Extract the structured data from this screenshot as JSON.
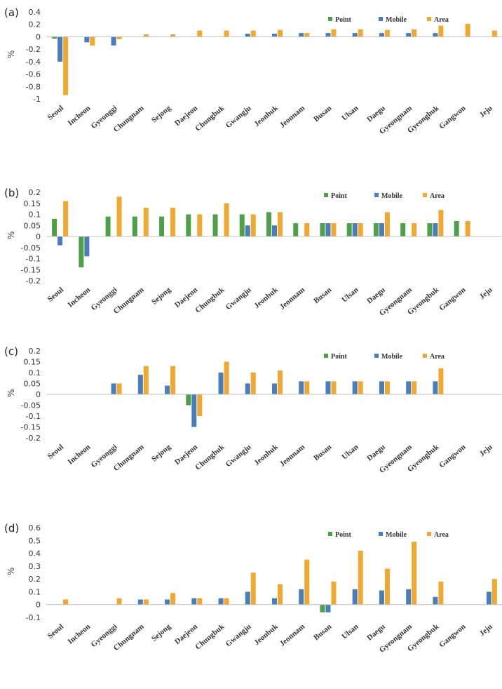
{
  "legend_colors": {
    "Point": "#4ea047",
    "Mobile": "#4a7ebb",
    "Area": "#f0a830"
  },
  "chart_data": [
    {
      "type": "bar",
      "panel": "(a)",
      "ylabel": "%",
      "ylim": [
        -1,
        0.4
      ],
      "yticks": [
        0.4,
        0.2,
        0,
        -0.2,
        -0.4,
        -0.6,
        -0.8,
        -1
      ],
      "categories": [
        "Seoul",
        "Incheon",
        "Gyeonggi",
        "Chungnam",
        "Sejong",
        "Daejeon",
        "Chungbuk",
        "Gwangju",
        "Jeonbuk",
        "Jeonnam",
        "Busan",
        "Ulsan",
        "Daegu",
        "Gyeongnam",
        "Gyeongbuk",
        "Gangwon",
        "Jeju"
      ],
      "series": [
        {
          "name": "Point",
          "values": [
            -0.03,
            0,
            0,
            0,
            0,
            0,
            0,
            0,
            0,
            0,
            0,
            0,
            0,
            0,
            0,
            0,
            0
          ]
        },
        {
          "name": "Mobile",
          "values": [
            -0.4,
            -0.09,
            -0.14,
            0,
            0,
            0,
            0,
            0.05,
            0.05,
            0.06,
            0.06,
            0.06,
            0.06,
            0.06,
            0.06,
            0,
            0
          ]
        },
        {
          "name": "Area",
          "values": [
            -0.94,
            -0.14,
            -0.04,
            0.04,
            0.04,
            0.1,
            0.1,
            0.1,
            0.11,
            0.06,
            0.12,
            0.12,
            0.11,
            0.12,
            0.18,
            0.21,
            0.1
          ]
        }
      ]
    },
    {
      "type": "bar",
      "panel": "(b)",
      "ylabel": "%",
      "ylim": [
        -0.2,
        0.2
      ],
      "yticks": [
        0.2,
        0.15,
        0.1,
        0.05,
        0,
        -0.05,
        -0.1,
        -0.15,
        -0.2
      ],
      "categories": [
        "Seoul",
        "Incheon",
        "Gyeonggi",
        "Chungnam",
        "Sejong",
        "Daejeon",
        "Chungbuk",
        "Gwangju",
        "Jeonbuk",
        "Jeonnam",
        "Busan",
        "Ulsan",
        "Daegu",
        "Gyeongnam",
        "Gyeongbuk",
        "Gangwon",
        "Jeju"
      ],
      "series": [
        {
          "name": "Point",
          "values": [
            0.08,
            -0.14,
            0.09,
            0.09,
            0.09,
            0.1,
            0.1,
            0.1,
            0.11,
            0.06,
            0.06,
            0.06,
            0.06,
            0.06,
            0.06,
            0.07,
            0
          ]
        },
        {
          "name": "Mobile",
          "values": [
            -0.04,
            -0.09,
            0,
            0,
            0,
            0,
            0,
            0.05,
            0.05,
            0,
            0.06,
            0.06,
            0.06,
            0,
            0.06,
            0,
            0
          ]
        },
        {
          "name": "Area",
          "values": [
            0.16,
            0,
            0.18,
            0.13,
            0.13,
            0.1,
            0.15,
            0.1,
            0.11,
            0.06,
            0.06,
            0.06,
            0.11,
            0.06,
            0.12,
            0.07,
            0
          ]
        }
      ]
    },
    {
      "type": "bar",
      "panel": "(c)",
      "ylabel": "%",
      "ylim": [
        -0.2,
        0.2
      ],
      "yticks": [
        0.2,
        0.15,
        0.1,
        0.05,
        0,
        -0.05,
        -0.1,
        -0.15,
        -0.2
      ],
      "categories": [
        "Seoul",
        "Incheon",
        "Gyeonggi",
        "Chungnam",
        "Sejong",
        "Daejeon",
        "Chungbuk",
        "Gwangju",
        "Jeonbuk",
        "Jeonnam",
        "Busan",
        "Ulsan",
        "Daegu",
        "Gyeongnam",
        "Gyeongbuk",
        "Gangwon",
        "Jeju"
      ],
      "series": [
        {
          "name": "Point",
          "values": [
            0,
            0,
            0,
            0,
            0,
            -0.05,
            0,
            0,
            0,
            0,
            0,
            0,
            0,
            0,
            0,
            0,
            0
          ]
        },
        {
          "name": "Mobile",
          "values": [
            0,
            0,
            0.05,
            0.09,
            0.04,
            -0.15,
            0.1,
            0.05,
            0.05,
            0.06,
            0.06,
            0.06,
            0.06,
            0.06,
            0.06,
            0,
            0
          ]
        },
        {
          "name": "Area",
          "values": [
            0,
            0,
            0.05,
            0.13,
            0.13,
            -0.1,
            0.15,
            0.1,
            0.11,
            0.06,
            0.06,
            0.06,
            0.06,
            0.06,
            0.12,
            0,
            0
          ]
        }
      ]
    },
    {
      "type": "bar",
      "panel": "(d)",
      "ylabel": "%",
      "ylim": [
        -0.1,
        0.6
      ],
      "yticks": [
        0.6,
        0.5,
        0.4,
        0.3,
        0.2,
        0.1,
        0,
        -0.1
      ],
      "categories": [
        "Seoul",
        "Incheon",
        "Gyeonggi",
        "Chungnam",
        "Sejong",
        "Daejeon",
        "Chungbuk",
        "Gwangju",
        "Jeonbuk",
        "Jeonnam",
        "Busan",
        "Ulsan",
        "Daegu",
        "Gyeongnam",
        "Gyeongbuk",
        "Gangwon",
        "Jeju"
      ],
      "series": [
        {
          "name": "Point",
          "values": [
            0,
            0,
            0,
            0,
            0,
            0,
            0,
            0,
            0,
            0,
            -0.06,
            0,
            0,
            0,
            0,
            0,
            0
          ]
        },
        {
          "name": "Mobile",
          "values": [
            0,
            0,
            0,
            0.04,
            0.04,
            0.05,
            0.05,
            0.1,
            0.05,
            0.12,
            -0.06,
            0.12,
            0.11,
            0.12,
            0.06,
            0,
            0.1
          ]
        },
        {
          "name": "Area",
          "values": [
            0.04,
            0,
            0.05,
            0.04,
            0.09,
            0.05,
            0.05,
            0.25,
            0.16,
            0.35,
            0.18,
            0.42,
            0.28,
            0.49,
            0.18,
            0,
            0.2
          ]
        }
      ]
    }
  ]
}
